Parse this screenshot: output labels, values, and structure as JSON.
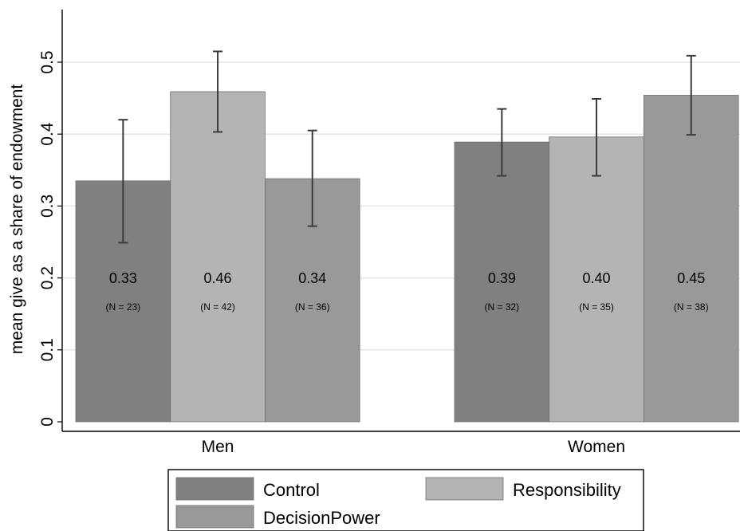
{
  "chart_data": {
    "type": "bar",
    "ylabel": "mean give as a share of endowment",
    "xlabel": "",
    "ylim": [
      0,
      0.56
    ],
    "yticks": [
      0,
      0.1,
      0.2,
      0.3,
      0.4,
      0.5
    ],
    "ytick_labels": [
      "0",
      "0.1",
      "0.2",
      "0.3",
      "0.4",
      "0.5"
    ],
    "grid": true,
    "legend_position": "bottom",
    "categories": [
      "Men",
      "Women"
    ],
    "series": [
      {
        "name": "Control",
        "color": "#808080",
        "values": [
          0.335,
          0.389
        ],
        "ci_low": [
          0.249,
          0.342
        ],
        "ci_high": [
          0.42,
          0.435
        ],
        "value_labels": [
          "0.33",
          "0.39"
        ],
        "n_labels": [
          "(N = 23)",
          "(N = 32)"
        ]
      },
      {
        "name": "Responsibility",
        "color": "#b4b4b4",
        "values": [
          0.459,
          0.396
        ],
        "ci_low": [
          0.403,
          0.342
        ],
        "ci_high": [
          0.515,
          0.449
        ],
        "value_labels": [
          "0.46",
          "0.40"
        ],
        "n_labels": [
          "(N = 42)",
          "(N = 35)"
        ]
      },
      {
        "name": "DecisionPower",
        "color": "#999999",
        "values": [
          0.338,
          0.454
        ],
        "ci_low": [
          0.272,
          0.399
        ],
        "ci_high": [
          0.405,
          0.509
        ],
        "value_labels": [
          "0.34",
          "0.45"
        ],
        "n_labels": [
          "(N = 36)",
          "(N = 38)"
        ]
      }
    ]
  }
}
